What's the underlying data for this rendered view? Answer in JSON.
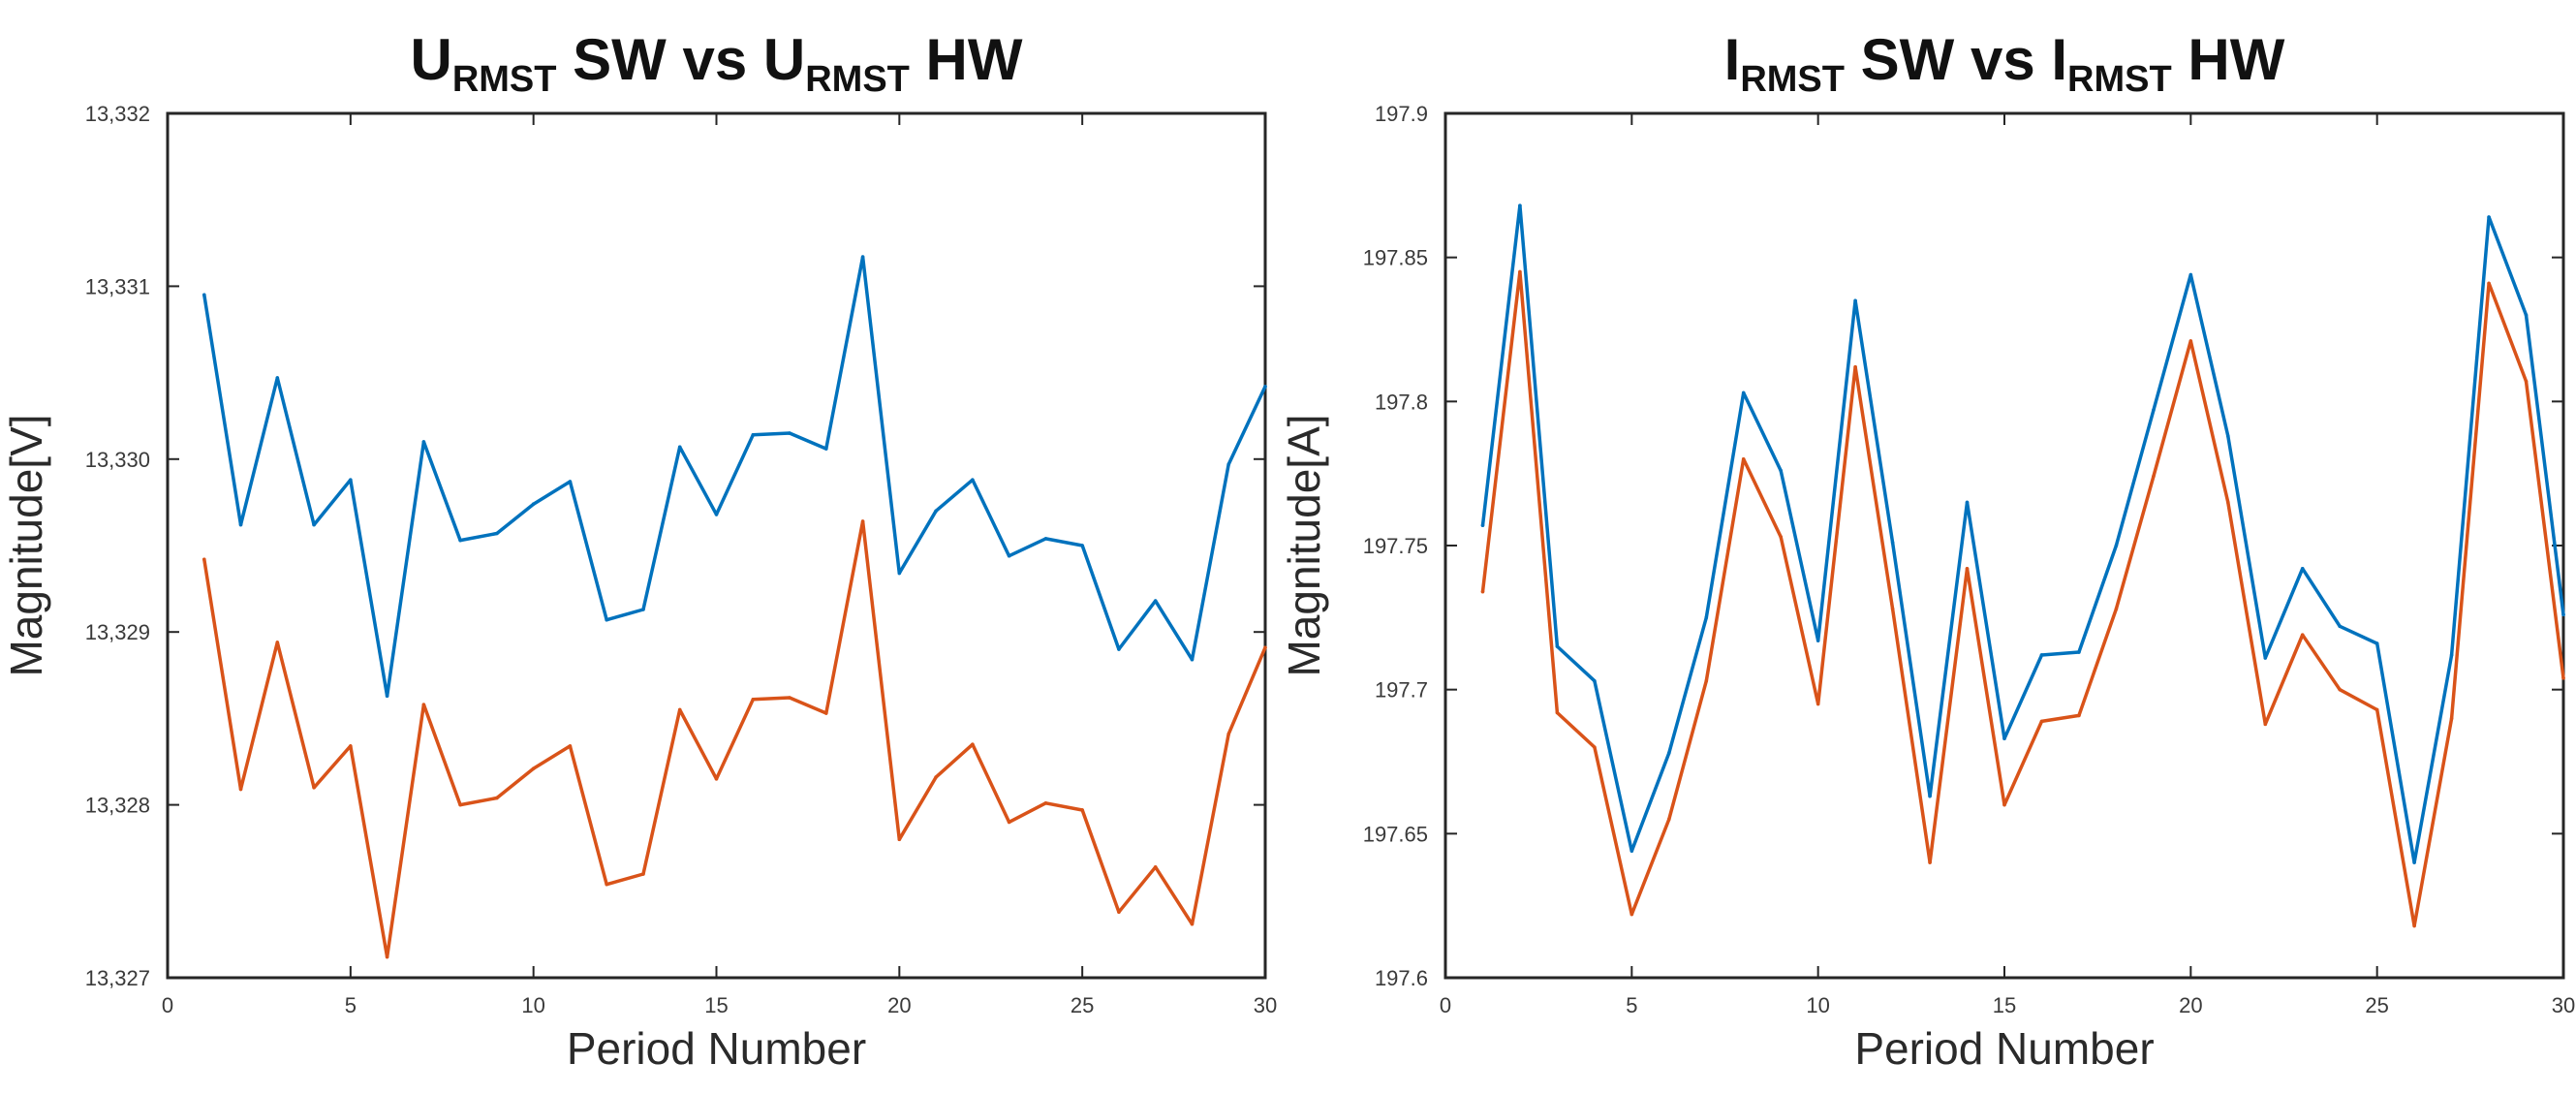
{
  "chart_data": [
    {
      "type": "line",
      "title": {
        "parts": [
          {
            "text": "U",
            "sub": false
          },
          {
            "text": "RMST",
            "sub": true
          },
          {
            "text": " SW vs U",
            "sub": false
          },
          {
            "text": "RMST",
            "sub": true
          },
          {
            "text": " HW",
            "sub": false
          }
        ]
      },
      "xlabel": "Period Number",
      "ylabel": "Magnitude[V]",
      "xlim": [
        0,
        30
      ],
      "ylim": [
        13327,
        13332
      ],
      "xticks": [
        0,
        5,
        10,
        15,
        20,
        25,
        30
      ],
      "yticks": [
        13327,
        13328,
        13329,
        13330,
        13331,
        13332
      ],
      "ytick_labels": [
        "13,327",
        "13,328",
        "13,329",
        "13,330",
        "13,331",
        "13,332"
      ],
      "grid": false,
      "x": [
        1,
        2,
        3,
        4,
        5,
        6,
        7,
        8,
        9,
        10,
        11,
        12,
        13,
        14,
        15,
        16,
        17,
        18,
        19,
        20,
        21,
        22,
        23,
        24,
        25,
        26,
        27,
        28,
        29,
        30
      ],
      "series": [
        {
          "color": "#0072bd",
          "values": [
            13330.95,
            13329.62,
            13330.47,
            13329.62,
            13329.88,
            13328.63,
            13330.1,
            13329.53,
            13329.57,
            13329.74,
            13329.87,
            13329.07,
            13329.13,
            13330.07,
            13329.68,
            13330.14,
            13330.15,
            13330.06,
            13331.17,
            13329.34,
            13329.7,
            13329.88,
            13329.44,
            13329.54,
            13329.5,
            13328.9,
            13329.18,
            13328.84,
            13329.97,
            13330.42
          ]
        },
        {
          "color": "#d95319",
          "values": [
            13329.42,
            13328.09,
            13328.94,
            13328.1,
            13328.34,
            13327.12,
            13328.58,
            13328.0,
            13328.04,
            13328.21,
            13328.34,
            13327.54,
            13327.6,
            13328.55,
            13328.15,
            13328.61,
            13328.62,
            13328.53,
            13329.64,
            13327.8,
            13328.16,
            13328.35,
            13327.9,
            13328.01,
            13327.97,
            13327.38,
            13327.64,
            13327.31,
            13328.41,
            13328.91
          ]
        }
      ]
    },
    {
      "type": "line",
      "title": {
        "parts": [
          {
            "text": "I",
            "sub": false
          },
          {
            "text": "RMST",
            "sub": true
          },
          {
            "text": " SW vs I",
            "sub": false
          },
          {
            "text": "RMST",
            "sub": true
          },
          {
            "text": " HW",
            "sub": false
          }
        ]
      },
      "xlabel": "Period Number",
      "ylabel": "Magnitude[A]",
      "xlim": [
        0,
        30
      ],
      "ylim": [
        197.6,
        197.9
      ],
      "xticks": [
        0,
        5,
        10,
        15,
        20,
        25,
        30
      ],
      "yticks": [
        197.6,
        197.65,
        197.7,
        197.75,
        197.8,
        197.85,
        197.9
      ],
      "ytick_labels": [
        "197.6",
        "197.65",
        "197.7",
        "197.75",
        "197.8",
        "197.85",
        "197.9"
      ],
      "grid": false,
      "x": [
        1,
        2,
        3,
        4,
        5,
        6,
        7,
        8,
        9,
        10,
        11,
        12,
        13,
        14,
        15,
        16,
        17,
        18,
        19,
        20,
        21,
        22,
        23,
        24,
        25,
        26,
        27,
        28,
        29,
        30
      ],
      "series": [
        {
          "color": "#0072bd",
          "values": [
            197.757,
            197.868,
            197.715,
            197.703,
            197.644,
            197.678,
            197.725,
            197.803,
            197.776,
            197.717,
            197.835,
            197.751,
            197.663,
            197.765,
            197.683,
            197.712,
            197.713,
            197.75,
            197.797,
            197.844,
            197.788,
            197.711,
            197.742,
            197.722,
            197.716,
            197.64,
            197.712,
            197.864,
            197.83,
            197.726
          ]
        },
        {
          "color": "#d95319",
          "values": [
            197.734,
            197.845,
            197.692,
            197.68,
            197.622,
            197.655,
            197.703,
            197.78,
            197.753,
            197.695,
            197.812,
            197.728,
            197.64,
            197.742,
            197.66,
            197.689,
            197.691,
            197.728,
            197.774,
            197.821,
            197.765,
            197.688,
            197.719,
            197.7,
            197.693,
            197.618,
            197.69,
            197.841,
            197.807,
            197.704
          ]
        }
      ]
    }
  ]
}
